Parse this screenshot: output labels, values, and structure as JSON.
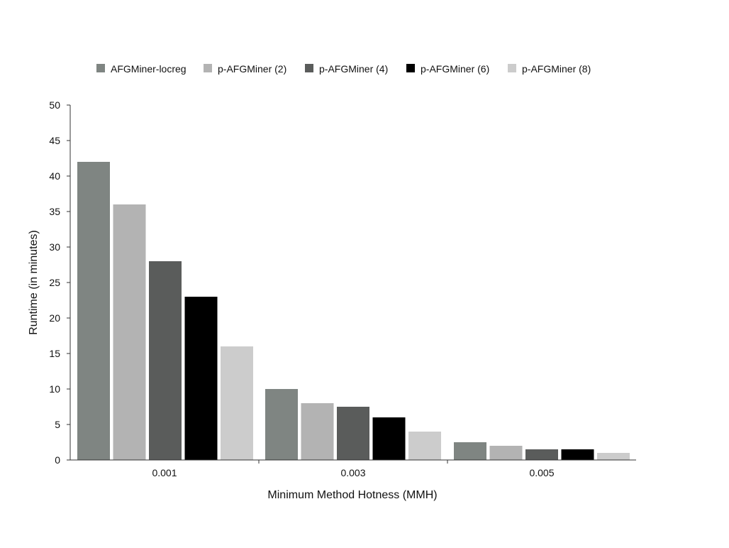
{
  "chart_data": {
    "type": "bar",
    "title": "",
    "xlabel": "Minimum Method Hotness (MMH)",
    "ylabel": "Runtime (in minutes)",
    "categories": [
      "0.001",
      "0.003",
      "0.005"
    ],
    "ylim": [
      0,
      50
    ],
    "yticks": [
      0,
      5,
      10,
      15,
      20,
      25,
      30,
      35,
      40,
      45,
      50
    ],
    "legend_position": "top",
    "grid": false,
    "series": [
      {
        "name": "AFGMiner-locreg",
        "color": "#7f8582",
        "values": [
          42,
          10,
          2.5
        ]
      },
      {
        "name": "p-AFGMiner (2)",
        "color": "#b3b3b3",
        "values": [
          36,
          8,
          2
        ]
      },
      {
        "name": "p-AFGMiner (4)",
        "color": "#5a5c5b",
        "values": [
          28,
          7.5,
          1.5
        ]
      },
      {
        "name": "p-AFGMiner (6)",
        "color": "#000000",
        "values": [
          23,
          6,
          1.5
        ]
      },
      {
        "name": "p-AFGMiner (8)",
        "color": "#cccccc",
        "values": [
          16,
          4,
          1
        ]
      }
    ]
  }
}
